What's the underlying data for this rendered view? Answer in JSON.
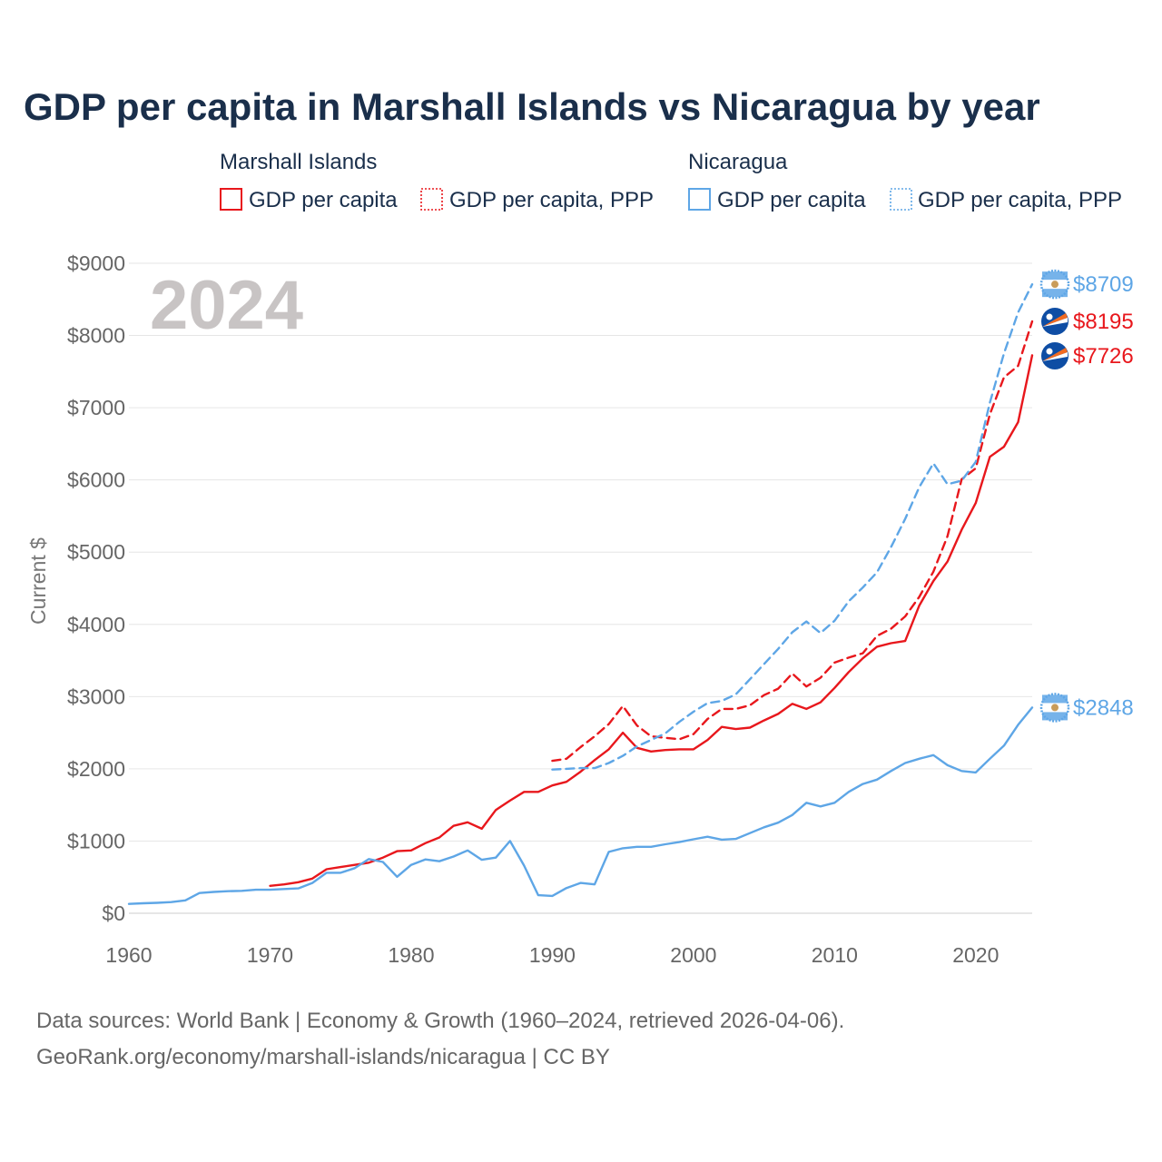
{
  "chart_data": {
    "type": "line",
    "title": "GDP per capita in Marshall Islands vs Nicaragua by year",
    "year_label": "2024",
    "ylabel": "Current $",
    "xlim": [
      1960,
      2024
    ],
    "ylim": [
      0,
      9000
    ],
    "x_ticks": [
      1960,
      1970,
      1980,
      1990,
      2000,
      2010,
      2020
    ],
    "y_ticks": [
      0,
      1000,
      2000,
      3000,
      4000,
      5000,
      6000,
      7000,
      8000,
      9000
    ],
    "y_tick_labels": [
      "$0",
      "$1000",
      "$2000",
      "$3000",
      "$4000",
      "$5000",
      "$6000",
      "$7000",
      "$8000",
      "$9000"
    ],
    "x_tick_labels": [
      "1960",
      "1970",
      "1980",
      "1990",
      "2000",
      "2010",
      "2020"
    ],
    "legend": [
      {
        "group": "Marshall Islands",
        "items": [
          "GDP per capita",
          "GDP per capita, PPP"
        ]
      },
      {
        "group": "Nicaragua",
        "items": [
          "GDP per capita",
          "GDP per capita, PPP"
        ]
      }
    ],
    "series": [
      {
        "name": "Marshall Islands GDP per capita",
        "country": "Marshall Islands",
        "style": "solid",
        "color": "#e8171c",
        "end_label": "$7726",
        "points": [
          [
            1970,
            380
          ],
          [
            1971,
            400
          ],
          [
            1972,
            430
          ],
          [
            1973,
            480
          ],
          [
            1974,
            610
          ],
          [
            1975,
            640
          ],
          [
            1976,
            670
          ],
          [
            1977,
            700
          ],
          [
            1978,
            770
          ],
          [
            1979,
            860
          ],
          [
            1980,
            870
          ],
          [
            1981,
            970
          ],
          [
            1982,
            1050
          ],
          [
            1983,
            1210
          ],
          [
            1984,
            1260
          ],
          [
            1985,
            1170
          ],
          [
            1986,
            1430
          ],
          [
            1987,
            1560
          ],
          [
            1988,
            1680
          ],
          [
            1989,
            1680
          ],
          [
            1990,
            1770
          ],
          [
            1991,
            1820
          ],
          [
            1992,
            1960
          ],
          [
            1993,
            2120
          ],
          [
            1994,
            2270
          ],
          [
            1995,
            2500
          ],
          [
            1996,
            2290
          ],
          [
            1997,
            2240
          ],
          [
            1998,
            2260
          ],
          [
            1999,
            2270
          ],
          [
            2000,
            2270
          ],
          [
            2001,
            2400
          ],
          [
            2002,
            2580
          ],
          [
            2003,
            2550
          ],
          [
            2004,
            2570
          ],
          [
            2005,
            2670
          ],
          [
            2006,
            2760
          ],
          [
            2007,
            2900
          ],
          [
            2008,
            2830
          ],
          [
            2009,
            2920
          ],
          [
            2010,
            3120
          ],
          [
            2011,
            3340
          ],
          [
            2012,
            3530
          ],
          [
            2013,
            3690
          ],
          [
            2014,
            3740
          ],
          [
            2015,
            3770
          ],
          [
            2016,
            4260
          ],
          [
            2017,
            4600
          ],
          [
            2018,
            4870
          ],
          [
            2019,
            5310
          ],
          [
            2020,
            5680
          ],
          [
            2021,
            6320
          ],
          [
            2022,
            6460
          ],
          [
            2023,
            6800
          ],
          [
            2024,
            7726
          ]
        ]
      },
      {
        "name": "Marshall Islands GDP per capita, PPP",
        "country": "Marshall Islands",
        "style": "dashed",
        "color": "#e8171c",
        "end_label": "$8195",
        "points": [
          [
            1990,
            2110
          ],
          [
            1991,
            2140
          ],
          [
            1992,
            2300
          ],
          [
            1993,
            2450
          ],
          [
            1994,
            2620
          ],
          [
            1995,
            2870
          ],
          [
            1996,
            2600
          ],
          [
            1997,
            2450
          ],
          [
            1998,
            2430
          ],
          [
            1999,
            2410
          ],
          [
            2000,
            2480
          ],
          [
            2001,
            2690
          ],
          [
            2002,
            2830
          ],
          [
            2003,
            2830
          ],
          [
            2004,
            2880
          ],
          [
            2005,
            3020
          ],
          [
            2006,
            3110
          ],
          [
            2007,
            3320
          ],
          [
            2008,
            3140
          ],
          [
            2009,
            3260
          ],
          [
            2010,
            3470
          ],
          [
            2011,
            3540
          ],
          [
            2012,
            3600
          ],
          [
            2013,
            3840
          ],
          [
            2014,
            3940
          ],
          [
            2015,
            4110
          ],
          [
            2016,
            4380
          ],
          [
            2017,
            4730
          ],
          [
            2018,
            5220
          ],
          [
            2019,
            6010
          ],
          [
            2020,
            6160
          ],
          [
            2021,
            6910
          ],
          [
            2022,
            7420
          ],
          [
            2023,
            7580
          ],
          [
            2024,
            8195
          ]
        ]
      },
      {
        "name": "Nicaragua GDP per capita",
        "country": "Nicaragua",
        "style": "solid",
        "color": "#5ea6e6",
        "end_label": "$2848",
        "points": [
          [
            1960,
            130
          ],
          [
            1961,
            138
          ],
          [
            1962,
            145
          ],
          [
            1963,
            155
          ],
          [
            1964,
            178
          ],
          [
            1965,
            280
          ],
          [
            1966,
            295
          ],
          [
            1967,
            305
          ],
          [
            1968,
            310
          ],
          [
            1969,
            325
          ],
          [
            1970,
            325
          ],
          [
            1971,
            335
          ],
          [
            1972,
            345
          ],
          [
            1973,
            420
          ],
          [
            1974,
            560
          ],
          [
            1975,
            560
          ],
          [
            1976,
            625
          ],
          [
            1977,
            750
          ],
          [
            1978,
            710
          ],
          [
            1979,
            505
          ],
          [
            1980,
            670
          ],
          [
            1981,
            745
          ],
          [
            1982,
            720
          ],
          [
            1983,
            785
          ],
          [
            1984,
            870
          ],
          [
            1985,
            740
          ],
          [
            1986,
            770
          ],
          [
            1987,
            1000
          ],
          [
            1988,
            660
          ],
          [
            1989,
            250
          ],
          [
            1990,
            240
          ],
          [
            1991,
            350
          ],
          [
            1992,
            420
          ],
          [
            1993,
            400
          ],
          [
            1994,
            850
          ],
          [
            1995,
            900
          ],
          [
            1996,
            920
          ],
          [
            1997,
            920
          ],
          [
            1998,
            955
          ],
          [
            1999,
            985
          ],
          [
            2000,
            1025
          ],
          [
            2001,
            1060
          ],
          [
            2002,
            1020
          ],
          [
            2003,
            1030
          ],
          [
            2004,
            1110
          ],
          [
            2005,
            1190
          ],
          [
            2006,
            1255
          ],
          [
            2007,
            1360
          ],
          [
            2008,
            1530
          ],
          [
            2009,
            1480
          ],
          [
            2010,
            1530
          ],
          [
            2011,
            1680
          ],
          [
            2012,
            1790
          ],
          [
            2013,
            1850
          ],
          [
            2014,
            1970
          ],
          [
            2015,
            2080
          ],
          [
            2016,
            2140
          ],
          [
            2017,
            2190
          ],
          [
            2018,
            2050
          ],
          [
            2019,
            1970
          ],
          [
            2020,
            1950
          ],
          [
            2021,
            2140
          ],
          [
            2022,
            2320
          ],
          [
            2023,
            2610
          ],
          [
            2024,
            2848
          ]
        ]
      },
      {
        "name": "Nicaragua GDP per capita, PPP",
        "country": "Nicaragua",
        "style": "dashed",
        "color": "#5ea6e6",
        "end_label": "$8709",
        "points": [
          [
            1990,
            1990
          ],
          [
            1991,
            2000
          ],
          [
            1992,
            2010
          ],
          [
            1993,
            2010
          ],
          [
            1994,
            2080
          ],
          [
            1995,
            2180
          ],
          [
            1996,
            2310
          ],
          [
            1997,
            2400
          ],
          [
            1998,
            2490
          ],
          [
            1999,
            2650
          ],
          [
            2000,
            2790
          ],
          [
            2001,
            2910
          ],
          [
            2002,
            2940
          ],
          [
            2003,
            3030
          ],
          [
            2004,
            3240
          ],
          [
            2005,
            3450
          ],
          [
            2006,
            3660
          ],
          [
            2007,
            3890
          ],
          [
            2008,
            4040
          ],
          [
            2009,
            3880
          ],
          [
            2010,
            4050
          ],
          [
            2011,
            4320
          ],
          [
            2012,
            4510
          ],
          [
            2013,
            4720
          ],
          [
            2014,
            5070
          ],
          [
            2015,
            5460
          ],
          [
            2016,
            5900
          ],
          [
            2017,
            6230
          ],
          [
            2018,
            5940
          ],
          [
            2019,
            5990
          ],
          [
            2020,
            6250
          ],
          [
            2021,
            7070
          ],
          [
            2022,
            7750
          ],
          [
            2023,
            8320
          ],
          [
            2024,
            8709
          ]
        ]
      }
    ]
  },
  "footer": {
    "source_line": "Data sources: World Bank | Economy & Growth (1960–2024, retrieved 2026-04-06).",
    "attribution": "GeoRank.org/economy/marshall-islands/nicaragua | CC BY"
  },
  "colors": {
    "marshall": "#e8171c",
    "nicaragua": "#5ea6e6",
    "title": "#1a2f4b"
  }
}
